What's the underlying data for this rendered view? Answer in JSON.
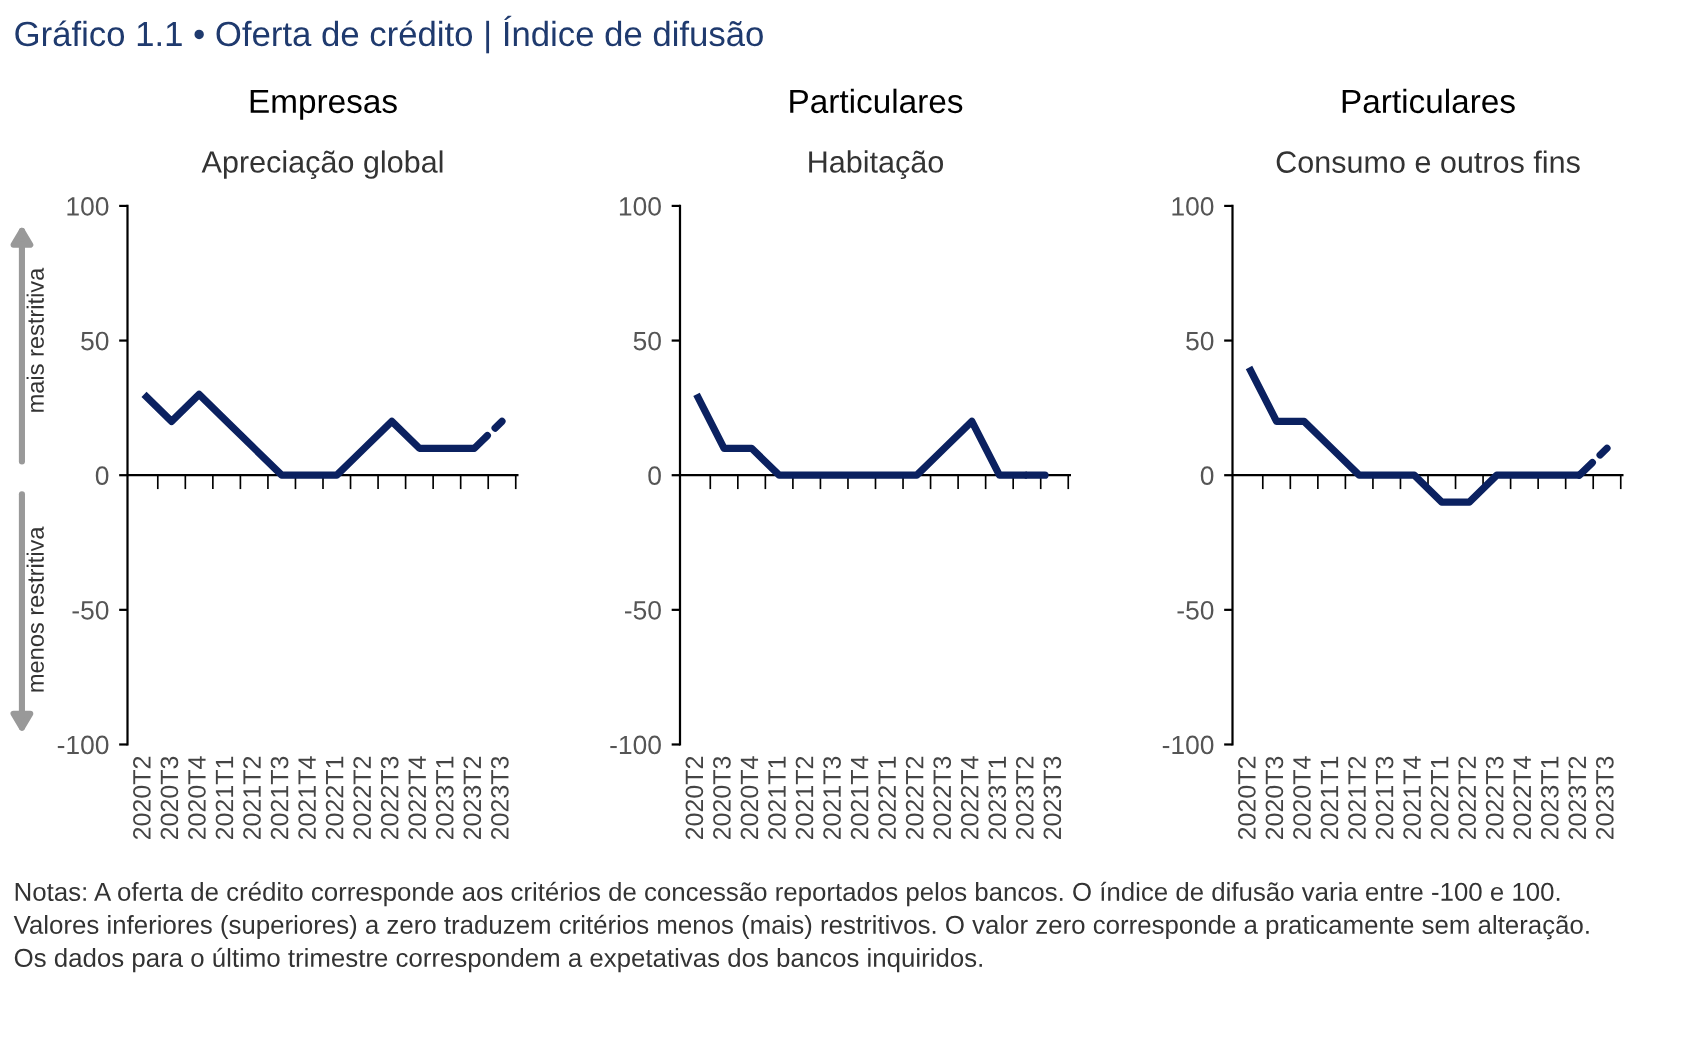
{
  "chart_data": [
    {
      "type": "line",
      "title": "Empresas",
      "subtitle": "Apreciação global",
      "categories": [
        "2020T2",
        "2020T3",
        "2020T4",
        "2021T1",
        "2021T2",
        "2021T3",
        "2021T4",
        "2022T1",
        "2022T2",
        "2022T3",
        "2022T4",
        "2023T1",
        "2023T2",
        "2023T3"
      ],
      "series": [
        {
          "color": "#0b2160",
          "line_style": "solid",
          "values": [
            30,
            20,
            30,
            20,
            10,
            0,
            0,
            0,
            10,
            20,
            10,
            10,
            10,
            null
          ]
        },
        {
          "color": "#0b2160",
          "line_style": "dashed",
          "values": [
            null,
            null,
            null,
            null,
            null,
            null,
            null,
            null,
            null,
            null,
            null,
            null,
            10,
            20
          ]
        }
      ],
      "ylim": [
        -100,
        100
      ],
      "yticks": [
        -100,
        -50,
        0,
        50,
        100
      ],
      "ref_lines": [
        {
          "axis": "y",
          "value": 0
        }
      ],
      "legend": false,
      "marker": "none",
      "annotations": [
        "mais restritiva",
        "menos restritiva"
      ]
    },
    {
      "type": "line",
      "title": "Particulares",
      "subtitle": "Habitação",
      "categories": [
        "2020T2",
        "2020T3",
        "2020T4",
        "2021T1",
        "2021T2",
        "2021T3",
        "2021T4",
        "2022T1",
        "2022T2",
        "2022T3",
        "2022T4",
        "2023T1",
        "2023T2",
        "2023T3"
      ],
      "series": [
        {
          "color": "#0b2160",
          "line_style": "solid",
          "values": [
            30,
            10,
            10,
            0,
            0,
            0,
            0,
            0,
            0,
            10,
            20,
            0,
            0,
            null
          ]
        },
        {
          "color": "#0b2160",
          "line_style": "dashed",
          "values": [
            null,
            null,
            null,
            null,
            null,
            null,
            null,
            null,
            null,
            null,
            null,
            null,
            0,
            0
          ]
        }
      ],
      "ylim": [
        -100,
        100
      ],
      "yticks": [
        -100,
        -50,
        0,
        50,
        100
      ],
      "ref_lines": [
        {
          "axis": "y",
          "value": 0
        }
      ],
      "legend": false,
      "marker": "none"
    },
    {
      "type": "line",
      "title": "Particulares",
      "subtitle": "Consumo e outros fins",
      "categories": [
        "2020T2",
        "2020T3",
        "2020T4",
        "2021T1",
        "2021T2",
        "2021T3",
        "2021T4",
        "2022T1",
        "2022T2",
        "2022T3",
        "2022T4",
        "2023T1",
        "2023T2",
        "2023T3"
      ],
      "series": [
        {
          "color": "#0b2160",
          "line_style": "solid",
          "values": [
            40,
            20,
            20,
            10,
            0,
            0,
            0,
            -10,
            -10,
            0,
            0,
            0,
            0,
            null
          ]
        },
        {
          "color": "#0b2160",
          "line_style": "dashed",
          "values": [
            null,
            null,
            null,
            null,
            null,
            null,
            null,
            null,
            null,
            null,
            null,
            null,
            0,
            10
          ]
        }
      ],
      "ylim": [
        -100,
        100
      ],
      "yticks": [
        -100,
        -50,
        0,
        50,
        100
      ],
      "ref_lines": [
        {
          "axis": "y",
          "value": 0
        }
      ],
      "legend": false,
      "marker": "none"
    },
    {
      "type": "other",
      "title": "Gráfico 1.1 • Oferta de crédito | Índice de difusão",
      "annotations": [
        "Notas: A oferta de crédito corresponde aos critérios de concessão reportados pelos bancos. O índice de difusão varia entre -100 e 100.\nValores inferiores (superiores) a zero traduzem critérios menos (mais) restritivos. O valor zero corresponde a praticamente sem alteração.\nOs dados para o último trimestre correspondem a expetativas dos bancos inquiridos."
      ]
    }
  ]
}
